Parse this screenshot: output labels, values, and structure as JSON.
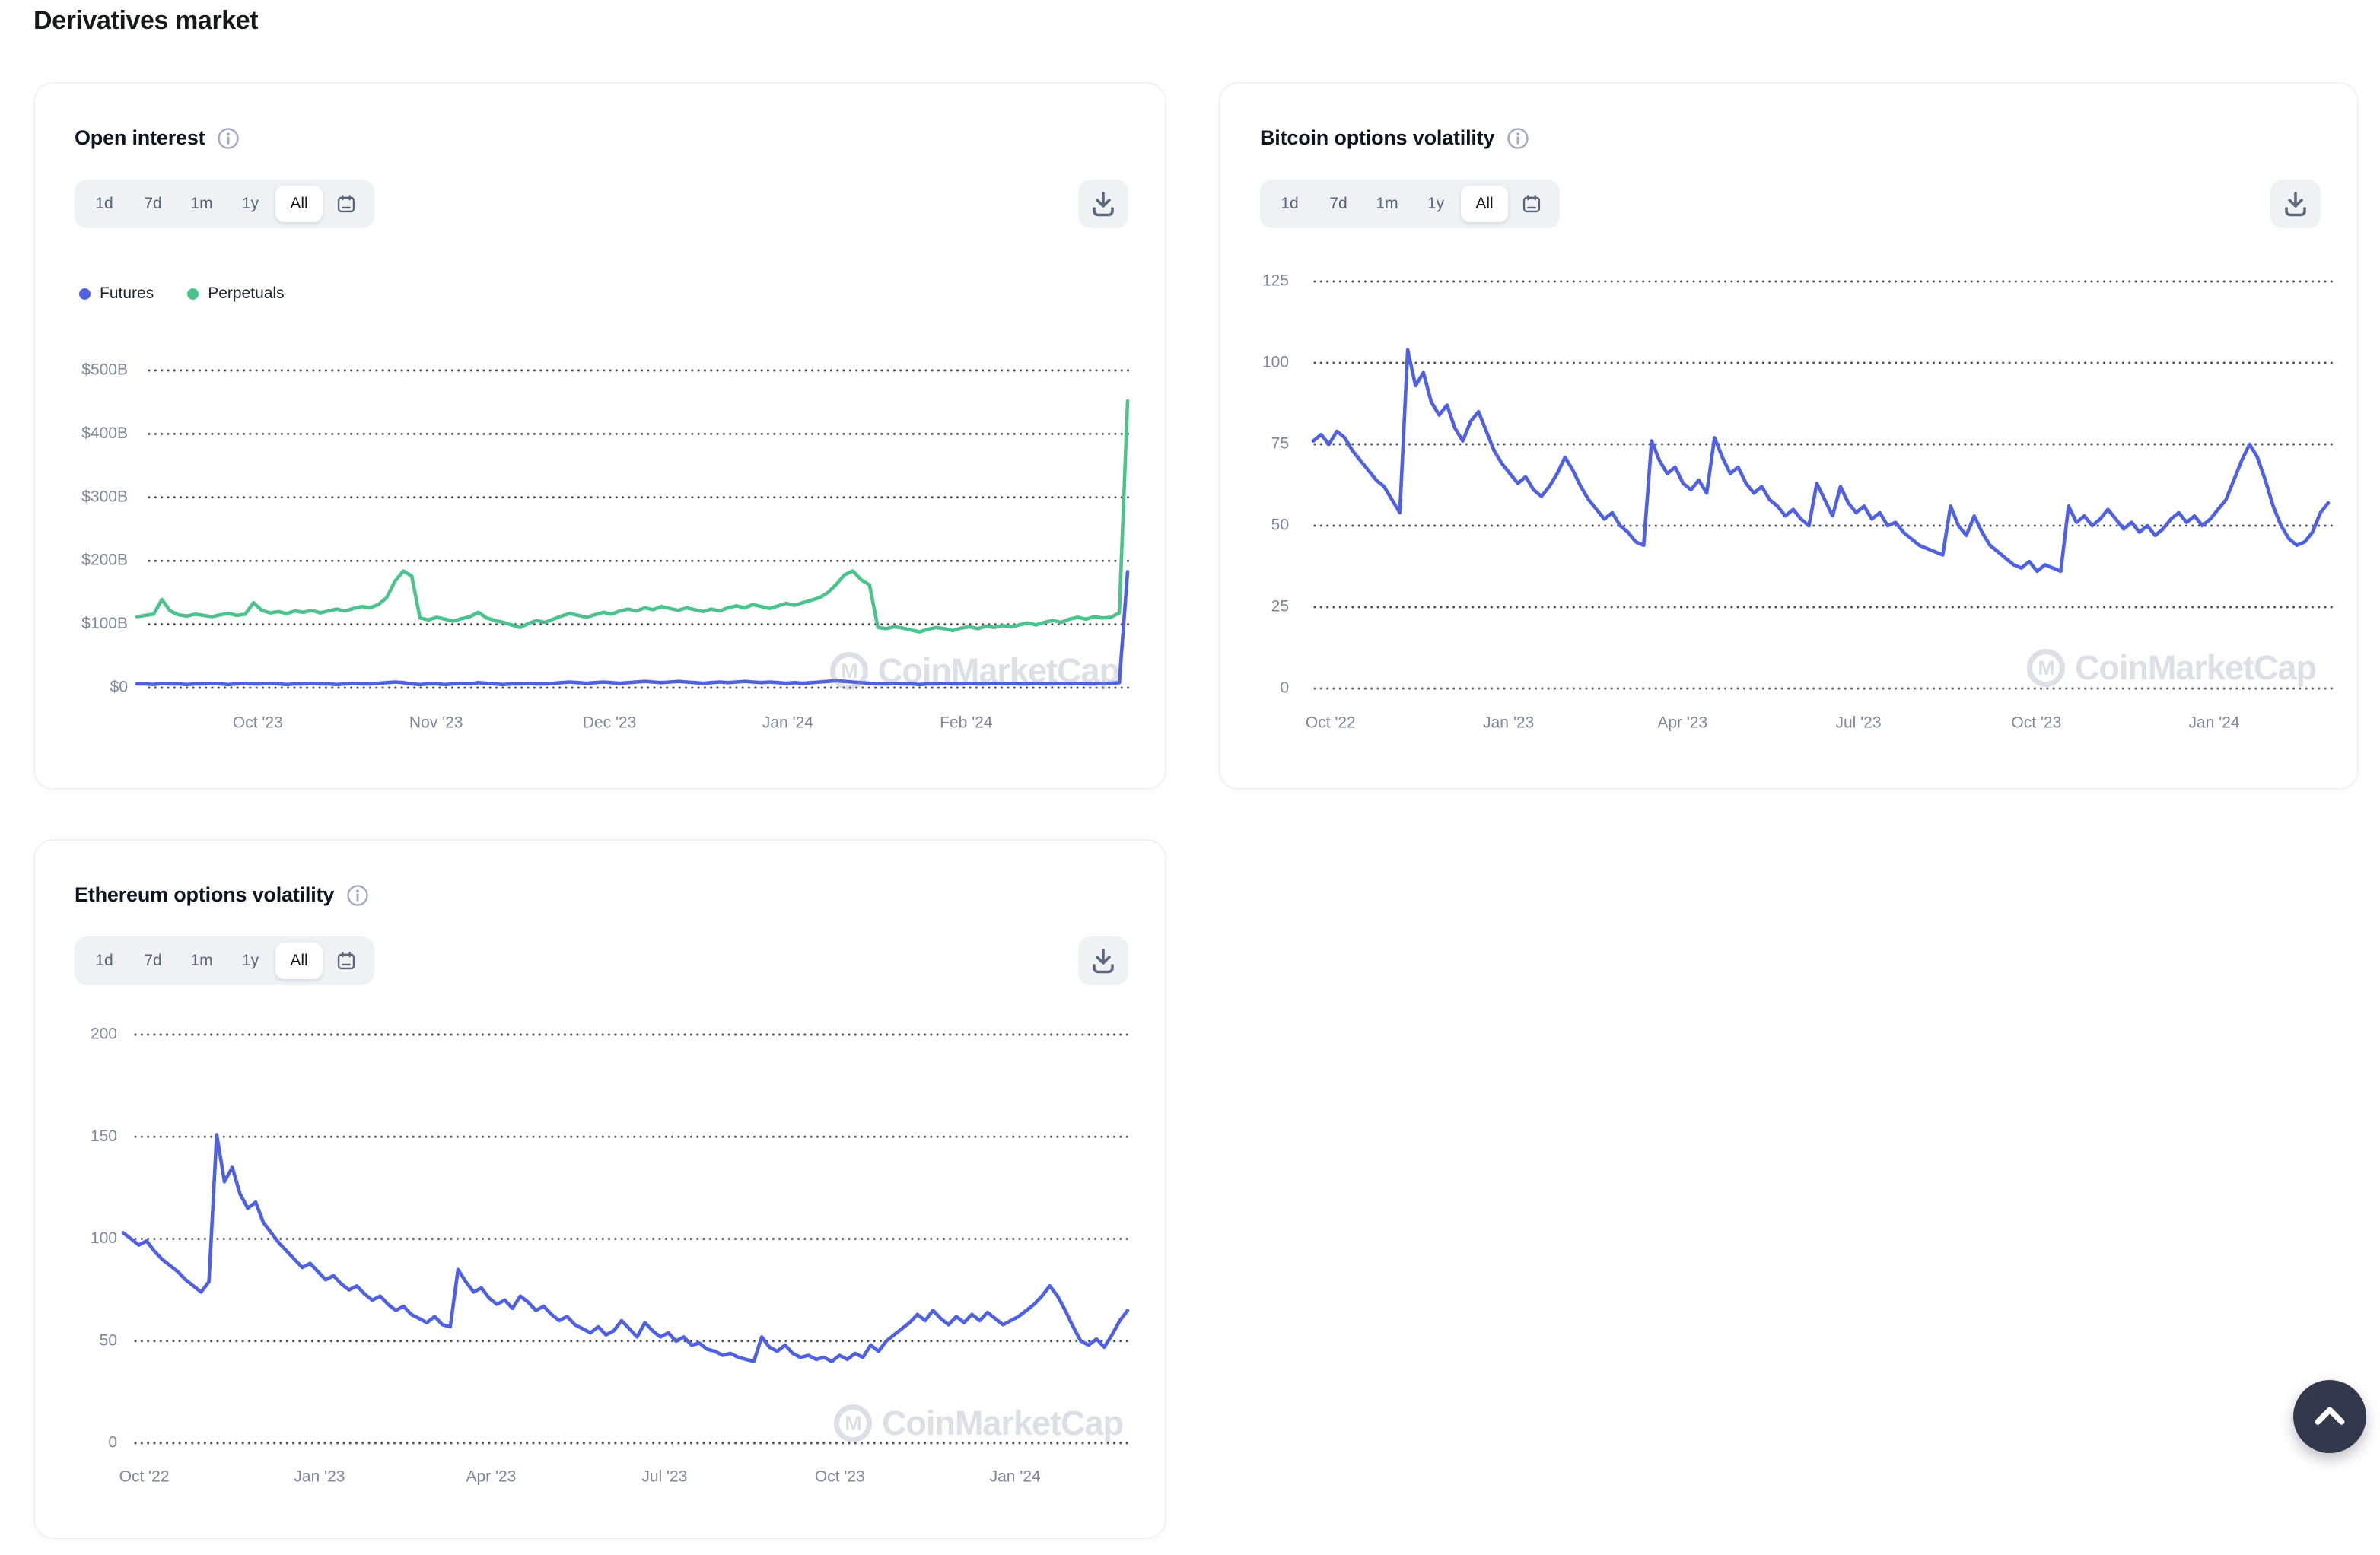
{
  "page": {
    "title": "Derivatives market"
  },
  "colors": {
    "futures_blue": "#4F60E1",
    "perpetuals_green": "#4CC28C",
    "axis_text": "#7C8799",
    "grid_dots": "#30353F",
    "pill_bg": "#EFF2F5",
    "pill_text": "#5A6478",
    "pill_active_text": "#16181D",
    "card_border": "#EFF2F5",
    "title_text": "#0D1421",
    "watermark_gray": "#8E99AC",
    "scroll_top_bg": "#32394D"
  },
  "controls": {
    "ranges": [
      "1d",
      "7d",
      "1m",
      "1y",
      "All"
    ],
    "selected": "All",
    "calendar_icon": "calendar-icon",
    "download_icon": "download-icon",
    "info_icon": "info-icon"
  },
  "watermark_text": "CoinMarketCap",
  "chart_data": [
    {
      "id": "oi",
      "type": "line",
      "title": "Open interest",
      "xlabel": "",
      "ylabel": "",
      "ylim": [
        0,
        500
      ],
      "grid": "dotted-horizontal",
      "legend_position": "top-left",
      "show_legend": true,
      "x_range": [
        "2023-09-10",
        "2024-02-29"
      ],
      "x_ticks": [
        {
          "label": "Oct '23",
          "t": 0.122
        },
        {
          "label": "Nov '23",
          "t": 0.302
        },
        {
          "label": "Dec '23",
          "t": 0.477
        },
        {
          "label": "Jan '24",
          "t": 0.657
        },
        {
          "label": "Feb '24",
          "t": 0.837
        }
      ],
      "y_ticks": [
        {
          "label": "$500B",
          "v": 500
        },
        {
          "label": "$400B",
          "v": 400
        },
        {
          "label": "$300B",
          "v": 300
        },
        {
          "label": "$200B",
          "v": 200
        },
        {
          "label": "$100B",
          "v": 100
        },
        {
          "label": "$0",
          "v": 0
        }
      ],
      "unit": "USD billions",
      "series": [
        {
          "name": "Futures",
          "color": "#4F60E1",
          "values": [
            6,
            6,
            5,
            7,
            6,
            6,
            5,
            6,
            6,
            7,
            6,
            5,
            6,
            7,
            6,
            6,
            7,
            6,
            5,
            6,
            6,
            7,
            6,
            6,
            5,
            6,
            7,
            6,
            6,
            7,
            8,
            9,
            8,
            6,
            5,
            6,
            6,
            5,
            6,
            7,
            6,
            8,
            7,
            6,
            5,
            6,
            6,
            7,
            6,
            6,
            7,
            8,
            9,
            8,
            7,
            8,
            9,
            8,
            7,
            8,
            9,
            10,
            9,
            8,
            9,
            10,
            9,
            8,
            7,
            8,
            9,
            8,
            9,
            10,
            9,
            8,
            9,
            8,
            7,
            8,
            7,
            8,
            9,
            10,
            11,
            10,
            9,
            8,
            7,
            6,
            6,
            7,
            6,
            6,
            5,
            6,
            6,
            7,
            6,
            6,
            7,
            6,
            6,
            7,
            6,
            7,
            6,
            6,
            7,
            6,
            6,
            7,
            6,
            7,
            6,
            6,
            7,
            7,
            8,
            183
          ]
        },
        {
          "name": "Perpetuals",
          "color": "#4CC28C",
          "values": [
            112,
            114,
            116,
            139,
            121,
            115,
            113,
            116,
            114,
            112,
            115,
            117,
            114,
            116,
            134,
            122,
            118,
            120,
            117,
            121,
            119,
            122,
            118,
            121,
            124,
            121,
            125,
            128,
            126,
            131,
            142,
            168,
            184,
            176,
            110,
            107,
            111,
            108,
            105,
            109,
            112,
            119,
            110,
            106,
            103,
            99,
            95,
            101,
            106,
            103,
            108,
            113,
            117,
            114,
            111,
            115,
            119,
            116,
            121,
            124,
            121,
            126,
            123,
            128,
            125,
            122,
            126,
            123,
            120,
            124,
            121,
            126,
            129,
            126,
            131,
            128,
            125,
            129,
            133,
            130,
            134,
            138,
            142,
            150,
            163,
            178,
            184,
            170,
            162,
            95,
            93,
            96,
            94,
            91,
            88,
            92,
            95,
            93,
            90,
            94,
            96,
            93,
            97,
            95,
            98,
            96,
            99,
            102,
            99,
            103,
            106,
            103,
            108,
            111,
            108,
            112,
            110,
            111,
            118,
            452
          ]
        }
      ]
    },
    {
      "id": "btc",
      "type": "line",
      "title": "Bitcoin options volatility",
      "xlabel": "",
      "ylabel": "",
      "ylim": [
        0,
        125
      ],
      "grid": "dotted-horizontal",
      "show_legend": false,
      "x_range": [
        "2022-09-22",
        "2024-02-29"
      ],
      "x_ticks": [
        {
          "label": "Oct '22",
          "t": 0.0171
        },
        {
          "label": "Jan '23",
          "t": 0.1924
        },
        {
          "label": "Apr '23",
          "t": 0.3638
        },
        {
          "label": "Jul '23",
          "t": 0.5371
        },
        {
          "label": "Oct '23",
          "t": 0.7124
        },
        {
          "label": "Jan '24",
          "t": 0.8876
        }
      ],
      "y_ticks": [
        {
          "label": "125",
          "v": 125
        },
        {
          "label": "100",
          "v": 100
        },
        {
          "label": "75",
          "v": 75
        },
        {
          "label": "50",
          "v": 50
        },
        {
          "label": "25",
          "v": 25
        },
        {
          "label": "0",
          "v": 0
        }
      ],
      "unit": "volatility index",
      "series": [
        {
          "name": "BTC options volatility",
          "color": "#4F60E1",
          "values": [
            76,
            78,
            75,
            79,
            77,
            73,
            70,
            67,
            64,
            62,
            58,
            54,
            104,
            93,
            97,
            88,
            84,
            87,
            80,
            76,
            82,
            85,
            79,
            73,
            69,
            66,
            63,
            65,
            61,
            59,
            62,
            66,
            71,
            67,
            62,
            58,
            55,
            52,
            54,
            50,
            48,
            45,
            44,
            76,
            70,
            66,
            68,
            63,
            61,
            64,
            60,
            77,
            71,
            66,
            68,
            63,
            60,
            62,
            58,
            56,
            53,
            55,
            52,
            50,
            63,
            58,
            53,
            62,
            57,
            54,
            56,
            52,
            54,
            50,
            51,
            48,
            46,
            44,
            43,
            42,
            41,
            56,
            50,
            47,
            53,
            48,
            44,
            42,
            40,
            38,
            37,
            39,
            36,
            38,
            37,
            36,
            56,
            51,
            53,
            50,
            52,
            55,
            52,
            49,
            51,
            48,
            50,
            47,
            49,
            52,
            54,
            51,
            53,
            50,
            52,
            55,
            58,
            64,
            70,
            75,
            71,
            64,
            56,
            50,
            46,
            44,
            45,
            48,
            54,
            57
          ]
        }
      ]
    },
    {
      "id": "eth",
      "type": "line",
      "title": "Ethereum options volatility",
      "xlabel": "",
      "ylabel": "",
      "ylim": [
        0,
        200
      ],
      "grid": "dotted-horizontal",
      "show_legend": false,
      "x_range": [
        "2022-09-20",
        "2024-02-29"
      ],
      "x_ticks": [
        {
          "label": "Oct '22",
          "t": 0.0209
        },
        {
          "label": "Jan '23",
          "t": 0.1954
        },
        {
          "label": "Apr '23",
          "t": 0.3662
        },
        {
          "label": "Jul '23",
          "t": 0.5389
        },
        {
          "label": "Oct '23",
          "t": 0.7135
        },
        {
          "label": "Jan '24",
          "t": 0.888
        }
      ],
      "y_ticks": [
        {
          "label": "200",
          "v": 200
        },
        {
          "label": "150",
          "v": 150
        },
        {
          "label": "100",
          "v": 100
        },
        {
          "label": "50",
          "v": 50
        },
        {
          "label": "0",
          "v": 0
        }
      ],
      "unit": "volatility index",
      "series": [
        {
          "name": "ETH options volatility",
          "color": "#4F60E1",
          "values": [
            103,
            100,
            97,
            99,
            94,
            90,
            87,
            84,
            80,
            77,
            74,
            79,
            151,
            128,
            135,
            122,
            115,
            118,
            108,
            103,
            98,
            94,
            90,
            86,
            88,
            84,
            80,
            82,
            78,
            75,
            77,
            73,
            70,
            72,
            68,
            65,
            67,
            63,
            61,
            59,
            62,
            58,
            57,
            85,
            79,
            74,
            76,
            71,
            68,
            70,
            66,
            72,
            69,
            65,
            67,
            63,
            60,
            62,
            58,
            56,
            54,
            57,
            53,
            55,
            60,
            56,
            52,
            59,
            55,
            52,
            54,
            50,
            52,
            48,
            49,
            46,
            45,
            43,
            44,
            42,
            41,
            40,
            52,
            47,
            45,
            48,
            44,
            42,
            43,
            41,
            42,
            40,
            43,
            41,
            44,
            42,
            48,
            45,
            50,
            53,
            56,
            59,
            63,
            60,
            65,
            61,
            58,
            62,
            59,
            63,
            60,
            64,
            61,
            58,
            60,
            62,
            65,
            68,
            72,
            77,
            72,
            65,
            57,
            50,
            48,
            51,
            47,
            53,
            60,
            65
          ]
        }
      ]
    }
  ],
  "scroll_top": {
    "icon": "chevron-up-icon"
  }
}
